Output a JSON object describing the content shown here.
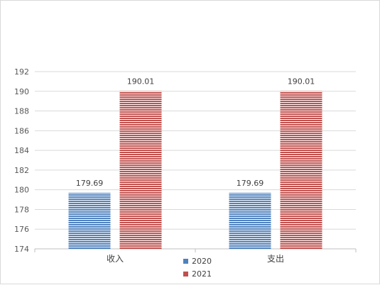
{
  "chart_data": {
    "type": "bar",
    "title": "",
    "xlabel": "",
    "ylabel": "",
    "categories": [
      "收入",
      "支出"
    ],
    "series": [
      {
        "name": "2020",
        "values": [
          179.69,
          179.69
        ],
        "labels": [
          "179.69",
          "179.69"
        ],
        "color": "#4f81bd"
      },
      {
        "name": "2021",
        "values": [
          190.01,
          190.01
        ],
        "labels": [
          "190.01",
          "190.01"
        ],
        "color": "#c0504d"
      }
    ],
    "ylim": [
      174,
      192
    ],
    "yticks": [
      "174",
      "176",
      "178",
      "180",
      "182",
      "184",
      "186",
      "188",
      "190",
      "192"
    ],
    "grid": true,
    "legend": "bottom",
    "bar_pattern": "horizontal-stripes"
  }
}
